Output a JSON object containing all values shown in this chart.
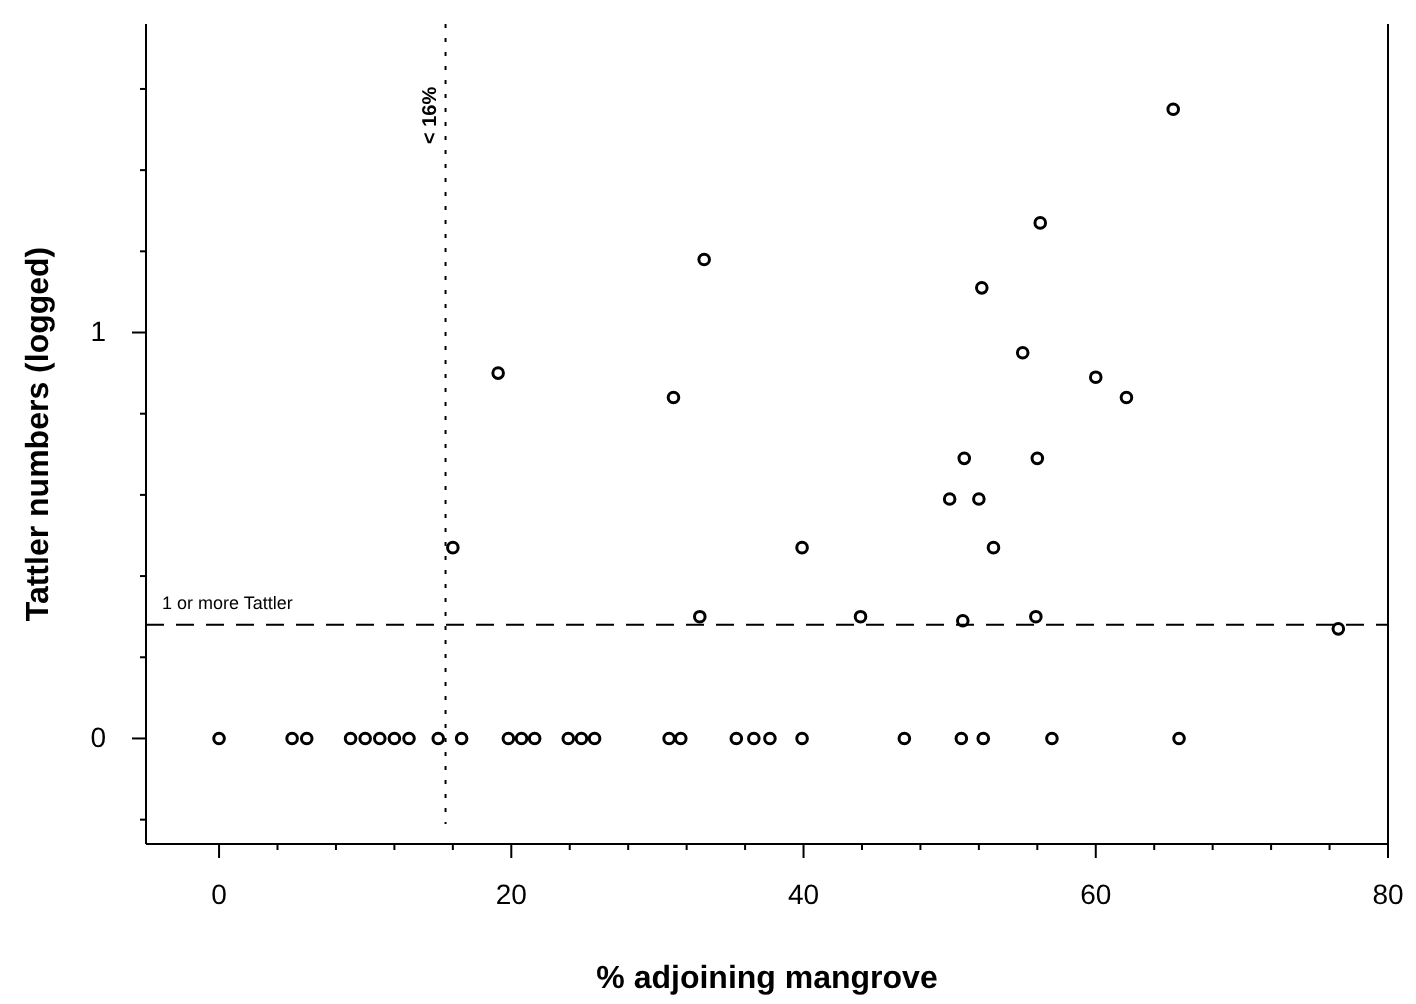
{
  "chart_data": {
    "type": "scatter",
    "xlabel": "% adjoining mangrove",
    "ylabel": "Tattler numbers (logged)",
    "x": [
      0,
      5,
      6,
      9,
      10,
      11,
      12,
      13,
      15,
      16.6,
      19.8,
      20.7,
      21.6,
      23.9,
      24.8,
      25.7,
      30.8,
      31.6,
      35.4,
      36.6,
      37.7,
      39.9,
      46.9,
      50.8,
      52.3,
      57.0,
      65.7,
      33.2,
      19.1,
      31.1,
      16.0,
      32.9,
      65.3,
      56.2,
      52.2,
      55.0,
      60.0,
      62.1,
      51.0,
      56.0,
      50.0,
      52.0,
      53.0,
      39.9,
      43.9,
      50.9,
      55.9,
      76.6
    ],
    "values": [
      0,
      0,
      0,
      0,
      0,
      0,
      0,
      0,
      0,
      0,
      0,
      0,
      0,
      0,
      0,
      0,
      0,
      0,
      0,
      0,
      0,
      0,
      0,
      0,
      0,
      0,
      0,
      1.18,
      0.9,
      0.84,
      0.47,
      0.3,
      1.55,
      1.27,
      1.11,
      0.95,
      0.89,
      0.84,
      0.69,
      0.69,
      0.59,
      0.59,
      0.47,
      0.47,
      0.3,
      0.29,
      0.3,
      0.27
    ],
    "color": "#000000",
    "marker": "circle",
    "xlim": [
      -5,
      80
    ],
    "ylim": [
      -0.26,
      1.76
    ],
    "xticks": [
      0,
      {
        "value": 4,
        "label": null
      },
      {
        "value": 8,
        "label": null
      },
      {
        "value": 12,
        "label": null
      },
      {
        "value": 16,
        "label": null
      },
      20,
      {
        "value": 24,
        "label": null
      },
      {
        "value": 28,
        "label": null
      },
      {
        "value": 32,
        "label": null
      },
      {
        "value": 36,
        "label": null
      },
      40,
      {
        "value": 44,
        "label": null
      },
      {
        "value": 48,
        "label": null
      },
      {
        "value": 52,
        "label": null
      },
      {
        "value": 56,
        "label": null
      },
      60,
      {
        "value": 64,
        "label": null
      },
      {
        "value": 68,
        "label": null
      },
      {
        "value": 72,
        "label": null
      },
      {
        "value": 76,
        "label": null
      },
      80
    ],
    "yticks": [
      {
        "value": -0.2,
        "label": null
      },
      0,
      {
        "value": 0.2,
        "label": null
      },
      {
        "value": 0.4,
        "label": null
      },
      {
        "value": 0.6,
        "label": null
      },
      {
        "value": 0.8,
        "label": null
      },
      1,
      {
        "value": 1.2,
        "label": null
      },
      {
        "value": 1.4,
        "label": null
      },
      {
        "value": 1.6,
        "label": null
      }
    ],
    "ref_lines": [
      {
        "axis": "y",
        "value": 0.28,
        "label": "1 or more Tattler",
        "line_style": "dashed"
      },
      {
        "axis": "x",
        "value": 15.5,
        "label": "< 16%",
        "line_style": "dotted"
      }
    ]
  }
}
